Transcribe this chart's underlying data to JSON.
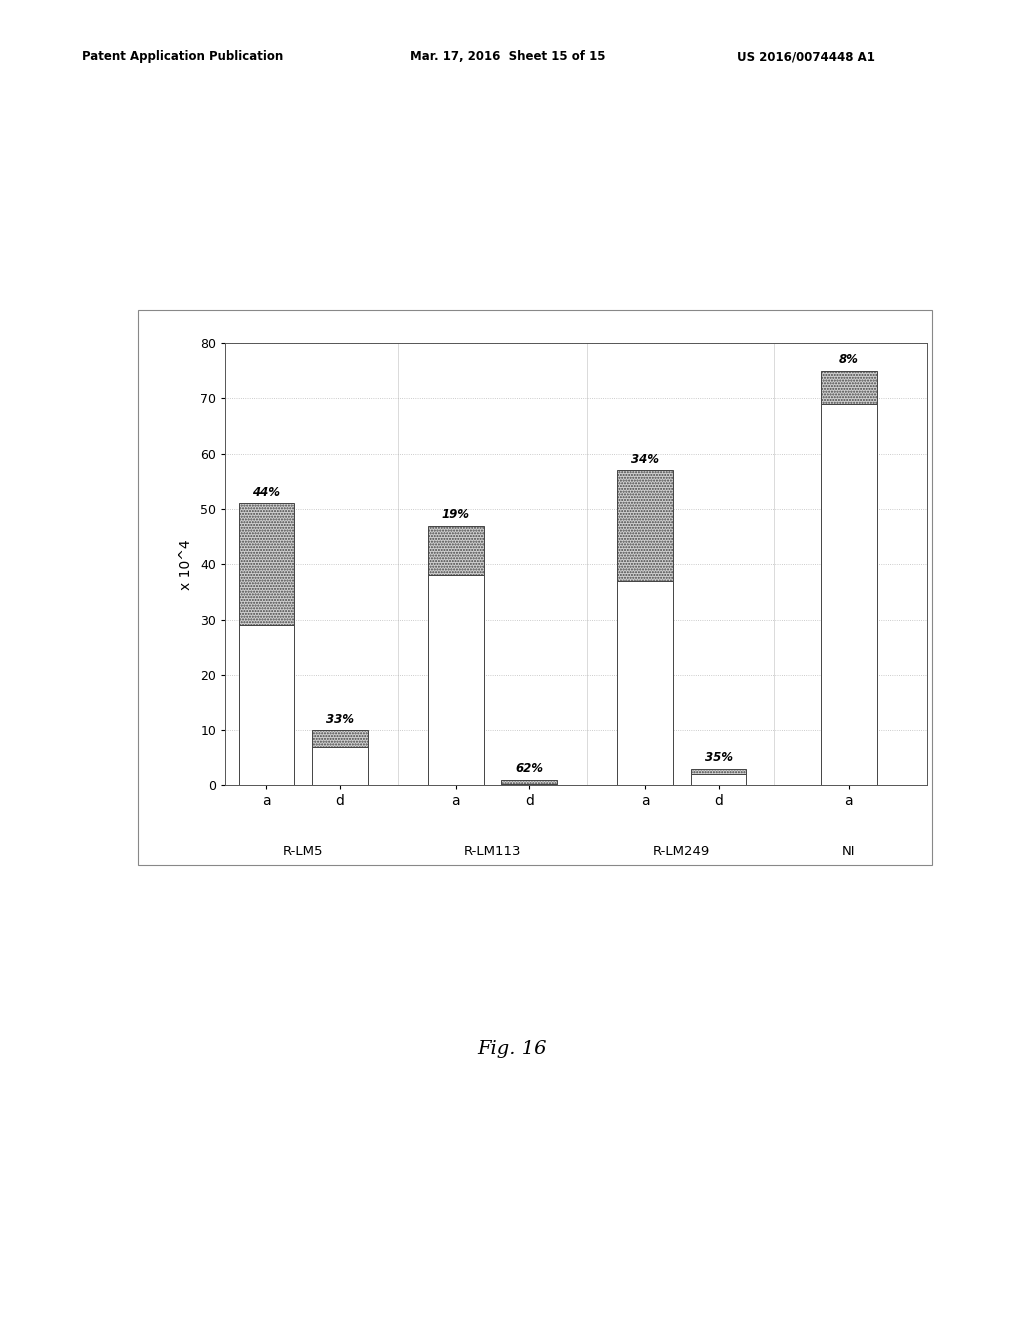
{
  "groups": [
    "R-LM5",
    "R-LM113",
    "R-LM249",
    "NI"
  ],
  "bars": [
    {
      "label": "a",
      "group": "R-LM5",
      "white_val": 29,
      "hatch_val": 22,
      "pct": "44%"
    },
    {
      "label": "d",
      "group": "R-LM5",
      "white_val": 7,
      "hatch_val": 3,
      "pct": "33%"
    },
    {
      "label": "a",
      "group": "R-LM113",
      "white_val": 38,
      "hatch_val": 9,
      "pct": "19%"
    },
    {
      "label": "d",
      "group": "R-LM113",
      "white_val": 0.3,
      "hatch_val": 0.7,
      "pct": "62%"
    },
    {
      "label": "a",
      "group": "R-LM249",
      "white_val": 37,
      "hatch_val": 20,
      "pct": "34%"
    },
    {
      "label": "d",
      "group": "R-LM249",
      "white_val": 2,
      "hatch_val": 1,
      "pct": "35%"
    },
    {
      "label": "a",
      "group": "NI",
      "white_val": 69,
      "hatch_val": 6,
      "pct": "8%"
    }
  ],
  "ylim": [
    0,
    80
  ],
  "yticks": [
    0,
    10,
    20,
    30,
    40,
    50,
    60,
    70,
    80
  ],
  "ylabel": "x 10^4",
  "bg_color": "#ffffff",
  "bar_color_white": "#ffffff",
  "bar_color_hatch": "#d0d0d0",
  "bar_edge_color": "#444444",
  "figure_bg": "#ffffff",
  "header_line1": "Patent Application Publication",
  "header_line2": "Mar. 17, 2016  Sheet 15 of 15",
  "header_line3": "US 2016/0074448 A1",
  "footer_text": "Fig. 16",
  "bar_width": 0.5
}
